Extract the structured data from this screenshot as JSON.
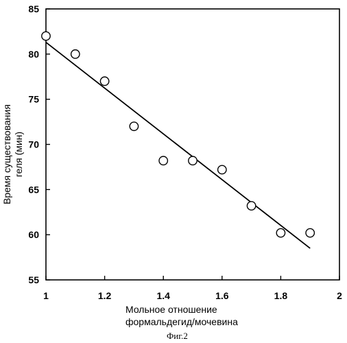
{
  "chart_data": {
    "type": "scatter",
    "xlabel": [
      "Мольное отношение",
      "формальдегид/мочевина"
    ],
    "ylabel": [
      "Время существования",
      "геля (мин)"
    ],
    "caption": "Фиг.2",
    "xlim": [
      1,
      2
    ],
    "ylim": [
      55,
      85
    ],
    "x_ticks": [
      1,
      1.2,
      1.4,
      1.6,
      1.8,
      2
    ],
    "x_tick_labels": [
      "1",
      "1.2",
      "1.4",
      "1.6",
      "1.8",
      "2"
    ],
    "y_ticks": [
      55,
      60,
      65,
      70,
      75,
      80,
      85
    ],
    "y_tick_labels": [
      "55",
      "60",
      "65",
      "70",
      "75",
      "80",
      "85"
    ],
    "grid": false,
    "series": [
      {
        "kind": "points",
        "marker": "open-circle",
        "x": [
          1.0,
          1.1,
          1.2,
          1.3,
          1.4,
          1.5,
          1.6,
          1.7,
          1.8,
          1.9
        ],
        "y": [
          82,
          80,
          77,
          72,
          68.2,
          68.2,
          67.2,
          63.2,
          60.2,
          60.2
        ]
      },
      {
        "kind": "fit-line",
        "x": [
          1.0,
          1.9
        ],
        "y": [
          81.3,
          58.5
        ]
      }
    ],
    "colors": {
      "ink": "#000000",
      "background": "#ffffff"
    }
  }
}
